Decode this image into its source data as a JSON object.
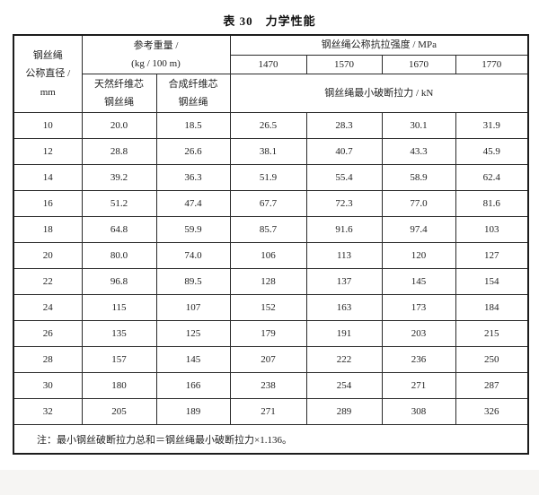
{
  "title": "表 30　力学性能",
  "table": {
    "header": {
      "diameter": "钢丝绳\n公称直径 /\nmm",
      "ref_weight": "参考重量 /\n(kg / 100 m)",
      "natural_core": "天然纤维芯\n钢丝绳",
      "synthetic_core": "合成纤维芯\n钢丝绳",
      "strength_title": "钢丝绳公称抗拉强度 / MPa",
      "strengths": [
        "1470",
        "1570",
        "1670",
        "1770"
      ],
      "breaking_force_title": "钢丝绳最小破断拉力 / kN"
    },
    "rows": [
      [
        "10",
        "20.0",
        "18.5",
        "26.5",
        "28.3",
        "30.1",
        "31.9"
      ],
      [
        "12",
        "28.8",
        "26.6",
        "38.1",
        "40.7",
        "43.3",
        "45.9"
      ],
      [
        "14",
        "39.2",
        "36.3",
        "51.9",
        "55.4",
        "58.9",
        "62.4"
      ],
      [
        "16",
        "51.2",
        "47.4",
        "67.7",
        "72.3",
        "77.0",
        "81.6"
      ],
      [
        "18",
        "64.8",
        "59.9",
        "85.7",
        "91.6",
        "97.4",
        "103"
      ],
      [
        "20",
        "80.0",
        "74.0",
        "106",
        "113",
        "120",
        "127"
      ],
      [
        "22",
        "96.8",
        "89.5",
        "128",
        "137",
        "145",
        "154"
      ],
      [
        "24",
        "115",
        "107",
        "152",
        "163",
        "173",
        "184"
      ],
      [
        "26",
        "135",
        "125",
        "179",
        "191",
        "203",
        "215"
      ],
      [
        "28",
        "157",
        "145",
        "207",
        "222",
        "236",
        "250"
      ],
      [
        "30",
        "180",
        "166",
        "238",
        "254",
        "271",
        "287"
      ],
      [
        "32",
        "205",
        "189",
        "271",
        "289",
        "308",
        "326"
      ]
    ],
    "note": "注：最小钢丝破断拉力总和＝钢丝绳最小破断拉力×1.136。"
  },
  "colors": {
    "page_background": "#ffffff",
    "table_border": "#1c1c1c",
    "text": "#222222",
    "footer_strip": "#f6f5f3"
  }
}
